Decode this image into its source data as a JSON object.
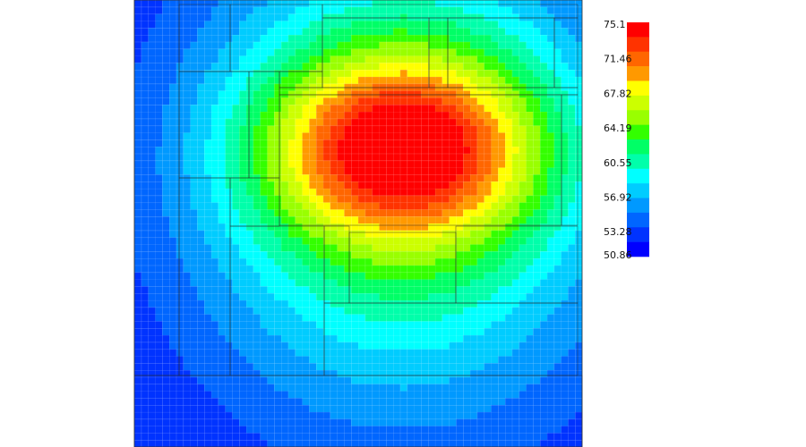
{
  "chart_data": {
    "type": "heatmap",
    "title": "",
    "xlabel": "",
    "ylabel": "",
    "grid": true,
    "colorbar": {
      "placement": "right",
      "min": 50.86,
      "max": 75.1,
      "tick_labels": [
        "75.1",
        "71.46",
        "67.82",
        "64.19",
        "60.55",
        "56.92",
        "53.28",
        "50.86"
      ],
      "colors": [
        "#ff0000",
        "#ff3300",
        "#ff6600",
        "#ff9900",
        "#ffff00",
        "#ccff00",
        "#99ff00",
        "#33ff00",
        "#00ff66",
        "#00ffaa",
        "#00ffff",
        "#00ccff",
        "#0099ff",
        "#0066ff",
        "#0033ff",
        "#0000ff"
      ]
    },
    "hotspot": {
      "peak_value": 75.1,
      "center_x": 0.6,
      "center_y": 0.33
    },
    "min_value": 50.86,
    "grid_columns": 64,
    "grid_rows": 64,
    "blocks": 20
  }
}
